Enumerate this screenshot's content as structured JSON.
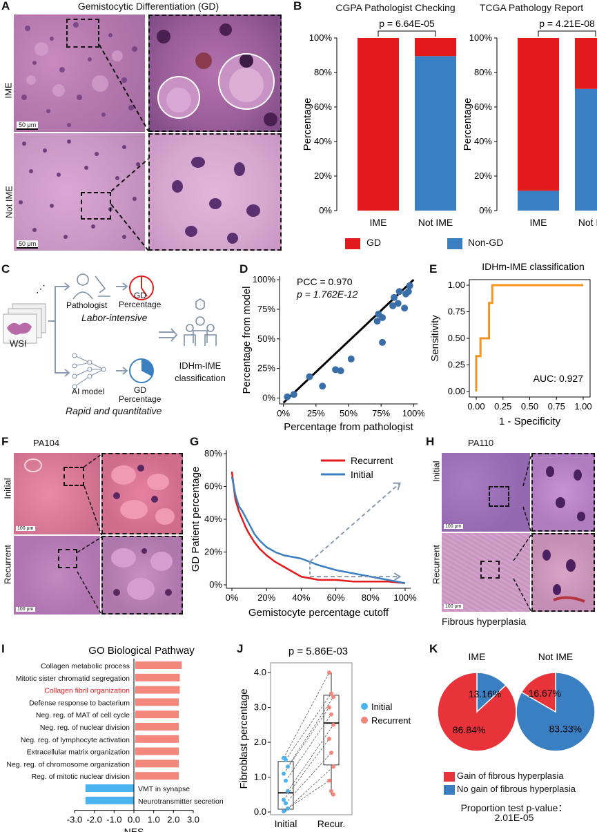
{
  "panels": {
    "A": {
      "letter": "A",
      "title": "Gemistocytic Differentiation (GD)",
      "row_labels": [
        "IME",
        "Not IME"
      ],
      "scale_bar": "50 μm"
    },
    "B": {
      "letter": "B",
      "left_title": "CGPA Pathologist Checking",
      "left_p": "p = 6.64E-05",
      "right_title": "TCGA Pathology Report",
      "right_p": "p = 4.21E-08",
      "ylabel": "Percentage",
      "yticks": [
        "0%",
        "20%",
        "40%",
        "60%",
        "80%",
        "100%"
      ],
      "categories": [
        "IME",
        "Not IME"
      ],
      "legend": [
        "GD",
        "Non-GD"
      ]
    },
    "C": {
      "letter": "C",
      "wsi": "WSI",
      "pathologist": "Pathologist",
      "labor": "Labor-intensive",
      "ai": "AI model",
      "rapid": "Rapid and quantitative",
      "gd": "GD",
      "percentage": "Percentage",
      "classification_1": "IDHm-IME",
      "classification_2": "classification"
    },
    "D": {
      "letter": "D",
      "pcc": "PCC = 0.970",
      "p": "p = 1.762E-12",
      "xlabel": "Percentage from pathologist",
      "ylabel": "Percentage from model",
      "xticks": [
        "0%",
        "25%",
        "50%",
        "75%",
        "100%"
      ],
      "yticks": [
        "0%",
        "25%",
        "50%",
        "75%",
        "100%"
      ]
    },
    "E": {
      "letter": "E",
      "title": "IDHm-IME classification",
      "xlabel": "1 - Specificity",
      "ylabel": "Sensitivity",
      "auc": "AUC: 0.927",
      "ticks": [
        "0.00",
        "0.25",
        "0.50",
        "0.75",
        "1.00"
      ]
    },
    "F": {
      "letter": "F",
      "title": "PA104",
      "row_labels": [
        "Initial",
        "Recurrent"
      ],
      "scale_bar": "100 μm"
    },
    "G": {
      "letter": "G",
      "xlabel": "Gemistocyte percentage cutoff",
      "ylabel": "GD Patient percentage",
      "xticks": [
        "0%",
        "20%",
        "40%",
        "60%",
        "80%",
        "100%"
      ],
      "yticks": [
        "0%",
        "20%",
        "40%",
        "60%",
        "80%"
      ],
      "legend": [
        "Recurrent",
        "Initial"
      ]
    },
    "H": {
      "letter": "H",
      "title": "PA110",
      "row_labels": [
        "Initial",
        "Recurrent"
      ],
      "caption": "Fibrous hyperplasia",
      "scale_bar": "100 μm"
    },
    "I": {
      "letter": "I",
      "title": "GO Biological Pathway",
      "xlabel": "NES",
      "xticks": [
        "-3.0",
        "-2.0",
        "-1.0",
        "0.0",
        "1.0",
        "2.0",
        "3.0"
      ]
    },
    "J": {
      "letter": "J",
      "p": "p = 5.86E-03",
      "ylabel": "Fibroblast percentage",
      "yticks": [
        "0.0",
        "1.0",
        "2.0",
        "3.0",
        "4.0"
      ],
      "categories": [
        "Initial",
        "Recur."
      ],
      "legend": [
        "Initial",
        "Recurrent"
      ]
    },
    "K": {
      "letter": "K",
      "titles": [
        "IME",
        "Not IME"
      ],
      "legend": [
        "Gain of fibrous hyperplasia",
        "No gain of fibrous hyperplasia"
      ],
      "test_line1": "Proportion test p-value：",
      "test_line2": "2.01E-05"
    }
  },
  "colors": {
    "red": "#e31a1c",
    "blue": "#3a7fc1",
    "orange": "#f7941d",
    "salmon": "#f4877b",
    "lightblue": "#4bb3f0",
    "grey": "#7e8fa6"
  },
  "chart_data": [
    {
      "id": "B-left",
      "type": "bar",
      "stacked": true,
      "title": "CGPA Pathologist Checking",
      "categories": [
        "IME",
        "Not IME"
      ],
      "series": [
        {
          "name": "GD",
          "values": [
            100,
            10.5
          ]
        },
        {
          "name": "Non-GD",
          "values": [
            0,
            89.5
          ]
        }
      ],
      "ylabel": "Percentage",
      "ylim": [
        0,
        100
      ]
    },
    {
      "id": "B-right",
      "type": "bar",
      "stacked": true,
      "title": "TCGA Pathology Report",
      "categories": [
        "IME",
        "Not IME"
      ],
      "series": [
        {
          "name": "GD",
          "values": [
            88.5,
            29.5
          ]
        },
        {
          "name": "Non-GD",
          "values": [
            11.5,
            70.5
          ]
        }
      ],
      "ylabel": "Percentage",
      "ylim": [
        0,
        100
      ]
    },
    {
      "id": "D",
      "type": "scatter",
      "xlabel": "Percentage from pathologist",
      "ylabel": "Percentage from model",
      "xlim": [
        0,
        100
      ],
      "ylim": [
        0,
        100
      ],
      "points": [
        [
          3,
          1
        ],
        [
          8,
          3
        ],
        [
          20,
          18
        ],
        [
          30,
          10
        ],
        [
          40,
          24
        ],
        [
          44,
          23
        ],
        [
          52,
          33
        ],
        [
          72,
          65
        ],
        [
          73,
          71
        ],
        [
          76,
          68
        ],
        [
          76,
          47
        ],
        [
          84,
          78
        ],
        [
          85,
          85
        ],
        [
          88,
          80
        ],
        [
          89,
          90
        ],
        [
          93,
          76
        ],
        [
          94,
          88
        ],
        [
          96,
          90
        ],
        [
          97,
          95
        ]
      ],
      "fit": [
        [
          0,
          -4
        ],
        [
          100,
          100
        ]
      ]
    },
    {
      "id": "E",
      "type": "line",
      "title": "IDHm-IME classification",
      "xlabel": "1 - Specificity",
      "ylabel": "Sensitivity",
      "xlim": [
        0,
        1
      ],
      "ylim": [
        0,
        1
      ],
      "x": [
        0,
        0,
        0.04,
        0.04,
        0.09,
        0.09,
        0.12,
        0.12,
        0.15,
        0.15,
        1.0
      ],
      "y": [
        0,
        0.333,
        0.333,
        0.5,
        0.5,
        0.5,
        0.5,
        0.833,
        0.833,
        1.0,
        1.0
      ]
    },
    {
      "id": "G",
      "type": "line",
      "xlabel": "Gemistocyte percentage cutoff",
      "ylabel": "GD Patient percentage",
      "xlim": [
        0,
        100
      ],
      "ylim": [
        0,
        80
      ],
      "series": [
        {
          "name": "Recurrent",
          "x": [
            0,
            2,
            4,
            6,
            8,
            10,
            13,
            16,
            20,
            25,
            30,
            35,
            40,
            45,
            50,
            60,
            70,
            80,
            90,
            100
          ],
          "y": [
            69,
            52,
            45,
            40,
            35,
            31,
            26,
            22,
            18,
            14,
            11,
            8,
            5,
            4,
            3,
            3,
            2,
            2,
            2,
            1
          ]
        },
        {
          "name": "Initial",
          "x": [
            0,
            2,
            4,
            6,
            8,
            10,
            13,
            16,
            20,
            25,
            30,
            35,
            40,
            45,
            50,
            60,
            70,
            80,
            90,
            100
          ],
          "y": [
            66,
            55,
            48,
            45,
            41,
            37,
            31,
            27,
            23,
            20,
            18,
            17,
            16,
            14,
            12,
            9,
            7,
            5,
            3,
            1
          ]
        }
      ]
    },
    {
      "id": "I",
      "type": "bar",
      "orientation": "horizontal",
      "title": "GO Biological Pathway",
      "xlabel": "NES",
      "xlim": [
        -3,
        3
      ],
      "categories": [
        "Collagen metabolic process",
        "Mitotic sister chromatid segregation",
        "Collagen fibril organization",
        "Defense response to bacterium",
        "Neg. reg. of MAT of cell cycle",
        "Neg. reg. of nuclear division",
        "Neg. reg. of lymphocyte activation",
        "Extracellular matrix organization",
        "Neg. reg. of chromosome organization",
        "Reg. of mitotic nuclear division",
        "VMT in synapse",
        "Neurotransmitter secretion"
      ],
      "values": [
        2.35,
        2.25,
        2.25,
        2.2,
        2.2,
        2.2,
        2.2,
        2.2,
        2.2,
        2.2,
        -2.45,
        -2.45
      ],
      "highlight": "Collagen fibril organization"
    },
    {
      "id": "J",
      "type": "scatter",
      "p": "p = 5.86E-03",
      "ylabel": "Fibroblast percentage",
      "ylim": [
        0,
        4
      ],
      "categories": [
        "Initial",
        "Recur."
      ],
      "series": [
        {
          "name": "Initial",
          "values": [
            1.55,
            1.5,
            1.3,
            1.1,
            0.9,
            0.6,
            0.35,
            0.25,
            0.1,
            0.02
          ]
        },
        {
          "name": "Recurrent",
          "values": [
            4.0,
            3.4,
            3.3,
            3.0,
            2.8,
            2.5,
            2.1,
            1.7,
            1.3,
            0.9,
            0.6,
            0.5
          ]
        }
      ],
      "box": [
        {
          "q1": 0.08,
          "median": 0.55,
          "q3": 1.45,
          "min": 0.0,
          "max": 1.6
        },
        {
          "q1": 1.35,
          "median": 2.55,
          "q3": 3.35,
          "min": 0.5,
          "max": 4.0
        }
      ]
    },
    {
      "id": "K",
      "type": "pie",
      "titles": [
        "IME",
        "Not IME"
      ],
      "pies": [
        {
          "slices": [
            {
              "name": "Gain of fibrous hyperplasia",
              "value": 86.84,
              "label": "86.84%"
            },
            {
              "name": "No gain of fibrous hyperplasia",
              "value": 13.16,
              "label": "13.16%"
            }
          ]
        },
        {
          "slices": [
            {
              "name": "Gain of fibrous hyperplasia",
              "value": 16.67,
              "label": "16.67%"
            },
            {
              "name": "No gain of fibrous hyperplasia",
              "value": 83.33,
              "label": "83.33%"
            }
          ]
        }
      ]
    }
  ]
}
